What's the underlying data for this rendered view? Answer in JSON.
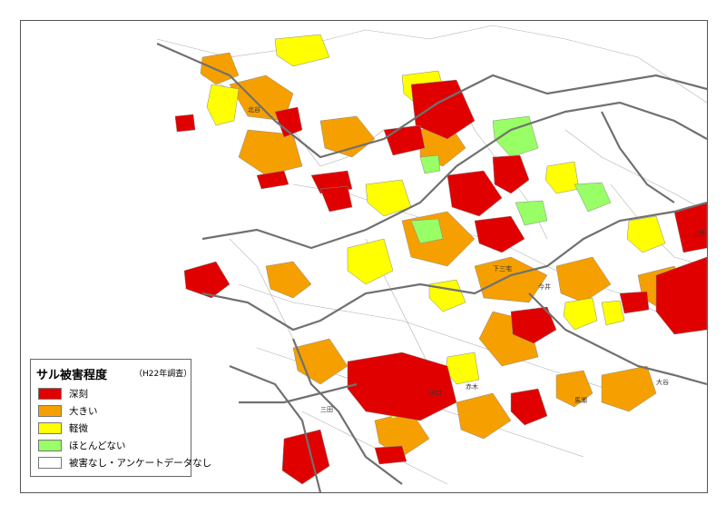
{
  "legend": {
    "title": "サル被害程度",
    "survey": "（H22年調査）",
    "items": [
      {
        "key": "severe",
        "label": "深刻",
        "color": "#e00000"
      },
      {
        "key": "large",
        "label": "大きい",
        "color": "#f5a000"
      },
      {
        "key": "minor",
        "label": "軽微",
        "color": "#ffff00"
      },
      {
        "key": "almost_none",
        "label": "ほとんどない",
        "color": "#99ff66"
      },
      {
        "key": "none",
        "label": "被害なし・アンケートデータなし",
        "color": "#ffffff"
      }
    ]
  },
  "colors": {
    "boundary_major": "#707070",
    "boundary_minor": "#b0b0b0",
    "region_label": "#333333"
  },
  "region_labels": [
    "上野",
    "馬瀬",
    "赤木",
    "三田",
    "川口",
    "今井",
    "下三宅",
    "北谷",
    "大谷"
  ]
}
